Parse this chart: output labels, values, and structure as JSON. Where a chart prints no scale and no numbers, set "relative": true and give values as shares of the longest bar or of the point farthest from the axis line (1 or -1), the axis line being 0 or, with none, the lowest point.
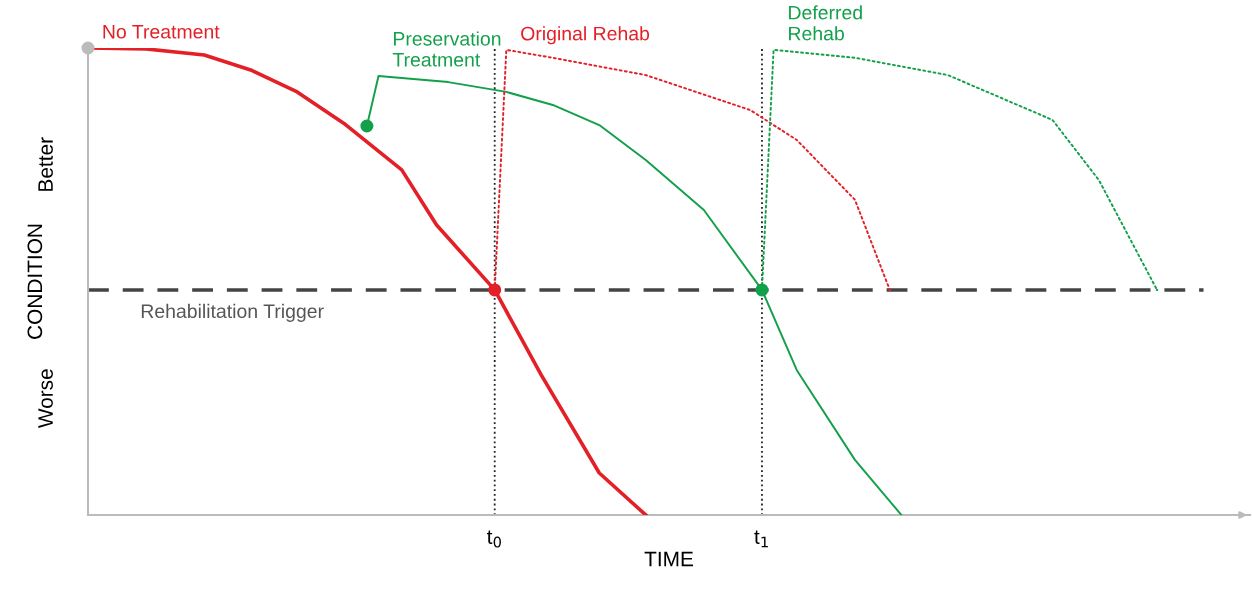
{
  "chart_data": {
    "type": "line",
    "relative": true,
    "xlabel": "TIME",
    "ylabel": "CONDITION",
    "annotations": [
      "Better",
      "Worse"
    ],
    "categories": [
      null,
      null,
      null,
      null,
      null,
      null,
      null,
      null,
      null,
      null,
      null,
      null,
      null,
      null,
      null,
      null,
      null,
      null,
      null,
      null,
      null,
      null,
      null,
      null,
      null,
      null,
      null,
      null,
      null,
      null,
      null,
      null,
      null,
      null,
      null,
      "t$_{0}$",
      null,
      null,
      null,
      null,
      null,
      null,
      null,
      null,
      null,
      null,
      null,
      null,
      null,
      null,
      null,
      null,
      null,
      null,
      null,
      null,
      null,
      null,
      "t$_{1}$",
      null,
      null,
      null,
      null,
      null,
      null,
      null,
      null,
      null,
      null,
      null,
      null,
      null,
      null,
      null,
      null,
      null,
      null,
      null,
      null,
      null,
      null,
      null,
      null,
      null,
      null,
      null,
      null,
      null,
      null,
      null,
      null,
      null,
      null,
      null,
      null,
      null,
      null,
      null,
      null,
      null,
      null
    ],
    "grid": false,
    "legend": false,
    "ref_lines": [
      {
        "axis": "y",
        "value": 0.482,
        "label": "Rehabilitation Trigger",
        "color": "#444444",
        "line_style": "dashed"
      },
      {
        "axis": "x",
        "value": "t$_{0}$",
        "color": "#222222",
        "line_style": "dotted"
      },
      {
        "axis": "x",
        "value": "t$_{1}$",
        "color": "#222222",
        "line_style": "dotted"
      }
    ],
    "series": [
      {
        "name": "No Treatment",
        "color": "#e32027",
        "values": [
          1.0,
          null,
          null,
          null,
          null,
          0.998,
          null,
          null,
          null,
          null,
          0.985,
          null,
          null,
          null,
          0.953,
          null,
          null,
          null,
          0.906,
          null,
          null,
          null,
          0.839,
          null,
          null,
          null,
          null,
          0.739,
          null,
          null,
          0.621,
          null,
          null,
          null,
          null,
          0.482,
          null,
          null,
          null,
          0.3,
          null,
          null,
          null,
          null,
          0.09,
          null,
          null,
          null,
          0,
          null,
          null,
          null,
          null,
          null,
          null,
          null,
          null,
          null,
          null,
          null,
          null,
          null,
          null,
          null,
          null,
          null,
          null,
          null,
          null,
          null,
          null,
          null,
          null,
          null,
          null,
          null,
          null,
          null,
          null,
          null,
          null,
          null,
          null,
          null,
          null,
          null,
          null,
          null,
          null,
          null,
          null,
          null,
          null,
          null,
          null,
          null,
          null,
          null,
          null,
          null,
          null
        ]
      },
      {
        "name": "Preservation\nTreatment",
        "color": "#13a04a",
        "values": [
          null,
          null,
          null,
          null,
          null,
          null,
          null,
          null,
          null,
          null,
          null,
          null,
          null,
          null,
          null,
          null,
          null,
          null,
          null,
          null,
          null,
          null,
          null,
          null,
          0.833,
          0.94,
          null,
          null,
          null,
          null,
          null,
          0.927,
          null,
          null,
          null,
          null,
          0.906,
          null,
          null,
          null,
          0.878,
          null,
          null,
          null,
          0.835,
          null,
          null,
          null,
          0.76,
          null,
          null,
          null,
          null,
          0.653,
          null,
          null,
          null,
          null,
          0.482,
          null,
          null,
          0.31,
          null,
          null,
          null,
          null,
          0.118,
          null,
          null,
          null,
          0,
          null,
          null,
          null,
          null,
          null,
          null,
          null,
          null,
          null,
          null,
          null,
          null,
          null,
          null,
          null,
          null,
          null,
          null,
          null,
          null,
          null,
          null,
          null,
          null,
          null,
          null,
          null,
          null,
          null,
          null
        ]
      },
      {
        "name": "Original Rehab",
        "color": "#e32027",
        "line_style": "dotted",
        "values": [
          null,
          null,
          null,
          null,
          null,
          null,
          null,
          null,
          null,
          null,
          null,
          null,
          null,
          null,
          null,
          null,
          null,
          null,
          null,
          null,
          null,
          null,
          null,
          null,
          null,
          null,
          null,
          null,
          null,
          null,
          null,
          null,
          null,
          null,
          null,
          0.482,
          0.996,
          null,
          null,
          null,
          0.979,
          null,
          null,
          null,
          null,
          null,
          null,
          null,
          0.942,
          null,
          null,
          null,
          null,
          null,
          null,
          null,
          null,
          0.867,
          null,
          null,
          null,
          0.803,
          null,
          null,
          null,
          null,
          0.675,
          null,
          null,
          0.482,
          null,
          null,
          null,
          null,
          null,
          null,
          null,
          null,
          null,
          null,
          null,
          null,
          null,
          null,
          null,
          null,
          null,
          null,
          null,
          null,
          null,
          null,
          null,
          null,
          null,
          null,
          null,
          null,
          null,
          null,
          null
        ]
      },
      {
        "name": "Deferred\nRehab",
        "color": "#13a04a",
        "line_style": "dotted",
        "values": [
          null,
          null,
          null,
          null,
          null,
          null,
          null,
          null,
          null,
          null,
          null,
          null,
          null,
          null,
          null,
          null,
          null,
          null,
          null,
          null,
          null,
          null,
          null,
          null,
          null,
          null,
          null,
          null,
          null,
          null,
          null,
          null,
          null,
          null,
          null,
          null,
          null,
          null,
          null,
          null,
          null,
          null,
          null,
          null,
          null,
          null,
          null,
          null,
          null,
          null,
          null,
          null,
          null,
          null,
          null,
          null,
          null,
          null,
          0.482,
          0.996,
          null,
          null,
          null,
          null,
          null,
          null,
          0.979,
          null,
          null,
          null,
          null,
          null,
          null,
          null,
          0.942,
          null,
          null,
          null,
          null,
          null,
          null,
          null,
          null,
          0.846,
          null,
          null,
          null,
          0.717,
          null,
          null,
          null,
          null,
          0.482,
          null,
          null,
          null,
          null,
          null,
          null,
          null,
          null
        ]
      },
      {
        "type": "scatter",
        "marker": "circle",
        "color": "#bbbbbb",
        "values": [
          1.0,
          null,
          null,
          null,
          null,
          null,
          null,
          null,
          null,
          null,
          null,
          null,
          null,
          null,
          null,
          null,
          null,
          null,
          null,
          null,
          null,
          null,
          null,
          null,
          null,
          null,
          null,
          null,
          null,
          null,
          null,
          null,
          null,
          null,
          null,
          null,
          null,
          null,
          null,
          null,
          null,
          null,
          null,
          null,
          null,
          null,
          null,
          null,
          null,
          null,
          null,
          null,
          null,
          null,
          null,
          null,
          null,
          null,
          null,
          null,
          null,
          null,
          null,
          null,
          null,
          null,
          null,
          null,
          null,
          null,
          null,
          null,
          null,
          null,
          null,
          null,
          null,
          null,
          null,
          null,
          null,
          null,
          null,
          null,
          null,
          null,
          null,
          null,
          null,
          null,
          null,
          null,
          null,
          null,
          null,
          null,
          null,
          null,
          null,
          null,
          null
        ]
      },
      {
        "type": "scatter",
        "marker": "circle",
        "color": "#e32027",
        "values": [
          null,
          null,
          null,
          null,
          null,
          null,
          null,
          null,
          null,
          null,
          null,
          null,
          null,
          null,
          null,
          null,
          null,
          null,
          null,
          null,
          null,
          null,
          null,
          null,
          null,
          null,
          null,
          null,
          null,
          null,
          null,
          null,
          null,
          null,
          null,
          0.482,
          null,
          null,
          null,
          null,
          null,
          null,
          null,
          null,
          null,
          null,
          null,
          null,
          null,
          null,
          null,
          null,
          null,
          null,
          null,
          null,
          null,
          null,
          null,
          null,
          null,
          null,
          null,
          null,
          null,
          null,
          null,
          null,
          null,
          null,
          null,
          null,
          null,
          null,
          null,
          null,
          null,
          null,
          null,
          null,
          null,
          null,
          null,
          null,
          null,
          null,
          null,
          null,
          null,
          null,
          null,
          null,
          null,
          null,
          null,
          null,
          null,
          null,
          null,
          null,
          null
        ]
      },
      {
        "type": "scatter",
        "marker": "circle",
        "color": "#13a04a",
        "values": [
          null,
          null,
          null,
          null,
          null,
          null,
          null,
          null,
          null,
          null,
          null,
          null,
          null,
          null,
          null,
          null,
          null,
          null,
          null,
          null,
          null,
          null,
          null,
          null,
          0.833,
          null,
          null,
          null,
          null,
          null,
          null,
          null,
          null,
          null,
          null,
          null,
          null,
          null,
          null,
          null,
          null,
          null,
          null,
          null,
          null,
          null,
          null,
          null,
          null,
          null,
          null,
          null,
          null,
          null,
          null,
          null,
          null,
          null,
          0.482,
          null,
          null,
          null,
          null,
          null,
          null,
          null,
          null,
          null,
          null,
          null,
          null,
          null,
          null,
          null,
          null,
          null,
          null,
          null,
          null,
          null,
          null,
          null,
          null,
          null,
          null,
          null,
          null,
          null,
          null,
          null,
          null,
          null,
          null,
          null,
          null,
          null,
          null,
          null,
          null,
          null,
          null
        ]
      }
    ]
  }
}
